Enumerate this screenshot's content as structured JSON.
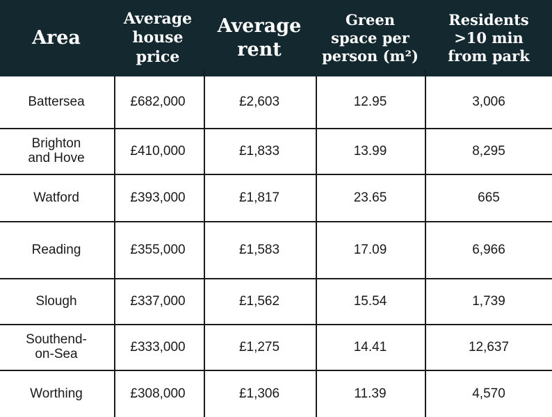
{
  "table": {
    "headers": {
      "area": "Area",
      "price": "Average\nhouse\nprice",
      "rent": "Average\nrent",
      "green": "Green\nspace per\nperson (m²)",
      "residents": "Residents\n>10 min\nfrom park"
    },
    "rows": [
      {
        "area": "Battersea",
        "price": "£682,000",
        "rent": "£2,603",
        "green": "12.95",
        "residents": "3,006"
      },
      {
        "area": "Brighton\nand Hove",
        "price": "£410,000",
        "rent": "£1,833",
        "green": "13.99",
        "residents": "8,295"
      },
      {
        "area": "Watford",
        "price": "£393,000",
        "rent": "£1,817",
        "green": "23.65",
        "residents": "665"
      },
      {
        "area": "Reading",
        "price": "£355,000",
        "rent": "£1,583",
        "green": "17.09",
        "residents": "6,966"
      },
      {
        "area": "Slough",
        "price": "£337,000",
        "rent": "£1,562",
        "green": "15.54",
        "residents": "1,739"
      },
      {
        "area": "Southend-\non-Sea",
        "price": "£333,000",
        "rent": "£1,275",
        "green": "14.41",
        "residents": "12,637"
      },
      {
        "area": "Worthing",
        "price": "£308,000",
        "rent": "£1,306",
        "green": "11.39",
        "residents": "4,570"
      }
    ]
  },
  "colors": {
    "header_bg": "#13282f",
    "header_text": "#ffffff",
    "grid": "#1a1a1a"
  }
}
